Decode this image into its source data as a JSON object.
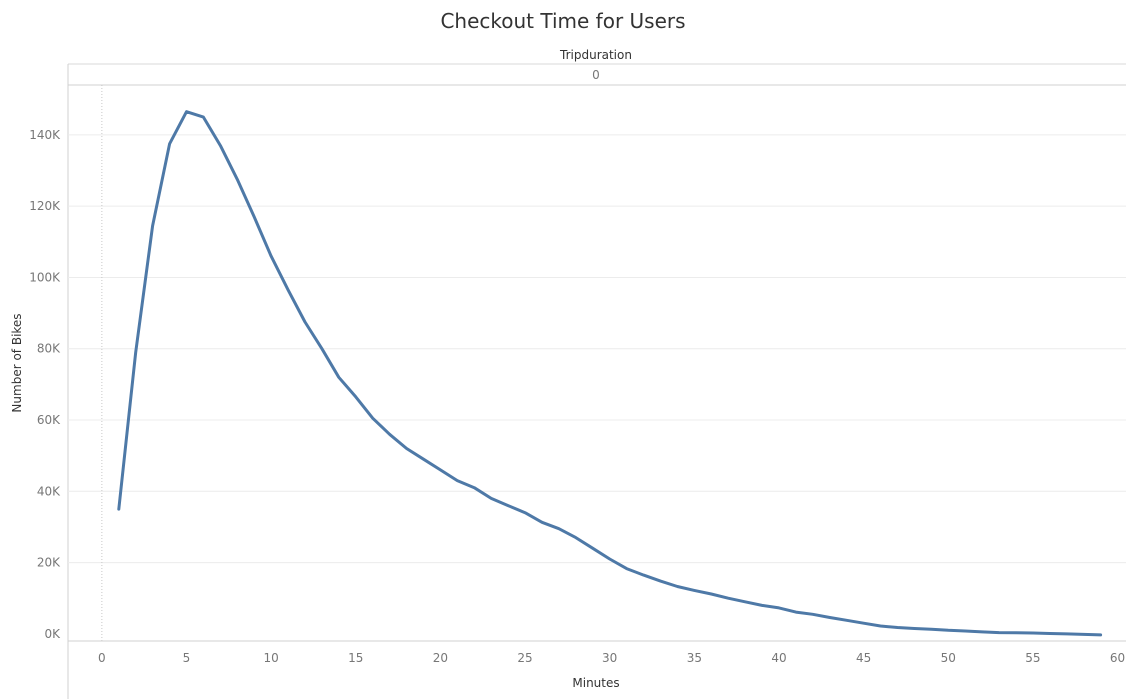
{
  "chart_data": {
    "type": "line",
    "title": "Checkout Time for Users",
    "column_header": "Tripduration",
    "column_value": "0",
    "xlabel": "Minutes",
    "ylabel": "Number of Bikes",
    "xlim": [
      -2,
      60.5
    ],
    "ylim": [
      -2000,
      154000
    ],
    "x_ticks": [
      0,
      5,
      10,
      15,
      20,
      25,
      30,
      35,
      40,
      45,
      50,
      55,
      60
    ],
    "y_ticks": [
      0,
      20000,
      40000,
      60000,
      80000,
      100000,
      120000,
      140000
    ],
    "y_tick_labels": [
      "0K",
      "20K",
      "40K",
      "60K",
      "80K",
      "100K",
      "120K",
      "140K"
    ],
    "grid": true,
    "series": [
      {
        "color": "#4e79a7",
        "x": [
          1,
          2,
          3,
          4,
          5,
          6,
          7,
          8,
          9,
          10,
          11,
          12,
          13,
          14,
          15,
          16,
          17,
          18,
          19,
          20,
          21,
          22,
          23,
          24,
          25,
          26,
          27,
          28,
          29,
          30,
          31,
          32,
          33,
          34,
          35,
          36,
          37,
          38,
          39,
          40,
          41,
          42,
          43,
          44,
          45,
          46,
          47,
          48,
          49,
          50,
          51,
          52,
          53,
          54,
          55,
          56,
          57,
          58,
          59
        ],
        "y": [
          35000,
          79000,
          114500,
          137500,
          146500,
          145000,
          137000,
          127500,
          117000,
          106000,
          96500,
          87500,
          80000,
          72000,
          66500,
          60500,
          56000,
          52000,
          49000,
          46000,
          43000,
          41000,
          38000,
          36000,
          34000,
          31300,
          29500,
          27000,
          24000,
          21000,
          18300,
          16500,
          14800,
          13300,
          12200,
          11200,
          10000,
          9000,
          8000,
          7300,
          6100,
          5500,
          4600,
          3800,
          3000,
          2200,
          1800,
          1500,
          1300,
          1000,
          800,
          550,
          350,
          300,
          250,
          100,
          0,
          -150,
          -300
        ]
      }
    ]
  }
}
